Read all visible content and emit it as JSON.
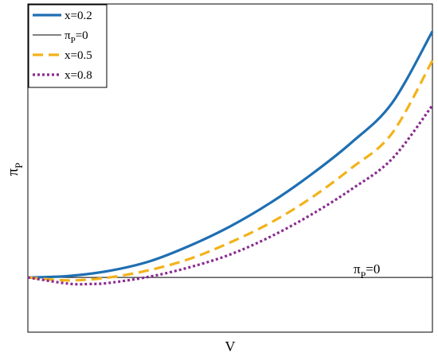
{
  "chart_data": {
    "type": "line",
    "xlabel": "V",
    "ylabel": {
      "main": "π",
      "sub": "P"
    },
    "annotation": {
      "main": "π",
      "sub": "P",
      "suffix": "=0"
    },
    "xlim": [
      0,
      1
    ],
    "ylim": [
      -0.15,
      0.75
    ],
    "xticks": false,
    "yticks": false,
    "grid": false,
    "legend_position": "top-left",
    "reference_line": {
      "name": "π_P=0",
      "y": 0,
      "color": "#000000"
    },
    "series": [
      {
        "name": "x=0.2",
        "color": "#1f6fb2",
        "style": "solid",
        "x": [
          0,
          0.1,
          0.2,
          0.3,
          0.4,
          0.5,
          0.6,
          0.7,
          0.8,
          0.9,
          1.0
        ],
        "y": [
          0.0,
          0.004,
          0.018,
          0.044,
          0.087,
          0.14,
          0.205,
          0.282,
          0.37,
          0.478,
          0.675
        ]
      },
      {
        "name": "x=0.5",
        "color": "#f3b21a",
        "style": "dashed",
        "x": [
          0,
          0.1,
          0.2,
          0.3,
          0.4,
          0.5,
          0.6,
          0.7,
          0.8,
          0.9,
          1.0
        ],
        "y": [
          0.0,
          -0.008,
          0.0,
          0.02,
          0.051,
          0.096,
          0.15,
          0.218,
          0.3,
          0.395,
          0.595
        ]
      },
      {
        "name": "x=0.8",
        "color": "#8a2a8f",
        "style": "dotted",
        "x": [
          0,
          0.1,
          0.15,
          0.2,
          0.3,
          0.4,
          0.5,
          0.6,
          0.7,
          0.8,
          0.9,
          1.0
        ],
        "y": [
          0.0,
          -0.017,
          -0.018,
          -0.015,
          0.002,
          0.028,
          0.063,
          0.112,
          0.172,
          0.242,
          0.325,
          0.472
        ]
      }
    ],
    "legend": [
      {
        "label": "x=0.2",
        "main": "x=0.2",
        "sub": "",
        "suffix": ""
      },
      {
        "label": "π_P=0",
        "main": "π",
        "sub": "P",
        "suffix": "=0"
      },
      {
        "label": "x=0.5",
        "main": "x=0.5",
        "sub": "",
        "suffix": ""
      },
      {
        "label": "x=0.8",
        "main": "x=0.8",
        "sub": "",
        "suffix": ""
      }
    ]
  }
}
